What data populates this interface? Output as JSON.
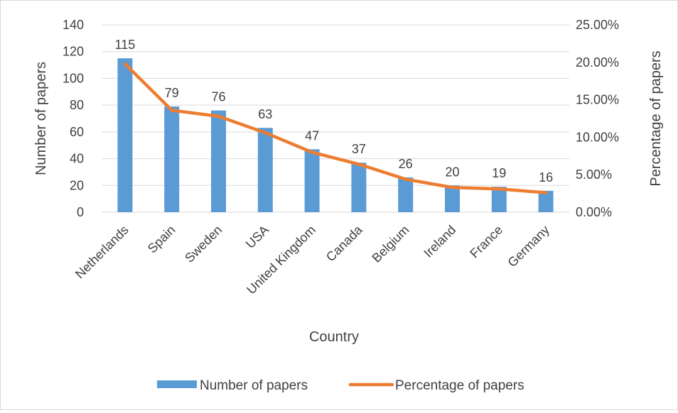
{
  "chart_data": {
    "type": "bar",
    "categories": [
      "Netherlands",
      "Spain",
      "Sweden",
      "USA",
      "United Kingdom",
      "Canada",
      "Belgium",
      "Ireland",
      "France",
      "Germany"
    ],
    "series": [
      {
        "name": "Number of papers",
        "type": "bar",
        "axis": "left",
        "color": "#5b9bd5",
        "values": [
          115,
          79,
          76,
          63,
          47,
          37,
          26,
          20,
          19,
          16
        ],
        "data_labels": [
          "115",
          "79",
          "76",
          "63",
          "47",
          "37",
          "26",
          "20",
          "19",
          "16"
        ]
      },
      {
        "name": "Percentage of papers",
        "type": "line",
        "axis": "right",
        "color": "#ed7d31",
        "values": [
          19.8,
          13.6,
          12.8,
          10.6,
          8.0,
          6.4,
          4.4,
          3.3,
          3.1,
          2.6
        ]
      }
    ],
    "xlabel": "Country",
    "ylabel": "Number of papers",
    "y2label": "Percentage of papers",
    "ylim": [
      0,
      140
    ],
    "y_ticks": [
      0,
      20,
      40,
      60,
      80,
      100,
      120,
      140
    ],
    "y_tick_labels": [
      "0",
      "20",
      "40",
      "60",
      "80",
      "100",
      "120",
      "140"
    ],
    "y2lim": [
      0,
      25
    ],
    "y2_ticks": [
      0,
      5,
      10,
      15,
      20,
      25
    ],
    "y2_tick_labels": [
      "0.00%",
      "5.00%",
      "10.00%",
      "15.00%",
      "20.00%",
      "25.00%"
    ],
    "grid": true,
    "legend_position": "bottom"
  }
}
